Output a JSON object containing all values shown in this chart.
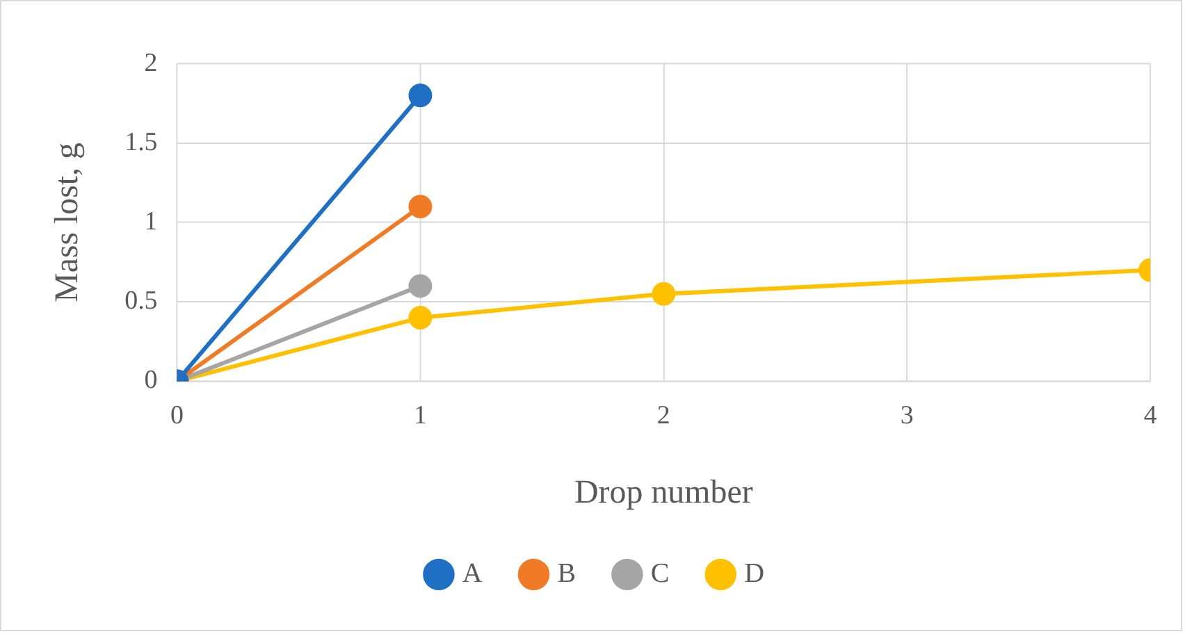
{
  "chart_data": {
    "type": "line",
    "xlabel": "Drop number",
    "ylabel": "Mass lost, g",
    "x": [
      0,
      1
    ],
    "series": [
      {
        "name": "A",
        "color": "#1f6fc5",
        "values": [
          0,
          1.8
        ]
      },
      {
        "name": "B",
        "color": "#f07b26",
        "values": [
          0,
          1.1
        ]
      },
      {
        "name": "C",
        "color": "#a5a5a5",
        "values": [
          0,
          0.6
        ]
      },
      {
        "name": "D",
        "color": "#ffc000",
        "x": [
          0,
          1,
          2,
          4
        ],
        "values": [
          0,
          0.4,
          0.55,
          0.7
        ]
      }
    ],
    "xlim": [
      0,
      4
    ],
    "xticks": [
      0,
      1,
      2,
      3,
      4
    ],
    "ylim": [
      0,
      2
    ],
    "yticks": [
      0,
      0.5,
      1,
      1.5,
      2
    ],
    "grid": true,
    "legend": "bottom",
    "marker": "circle",
    "line_style": "solid"
  }
}
